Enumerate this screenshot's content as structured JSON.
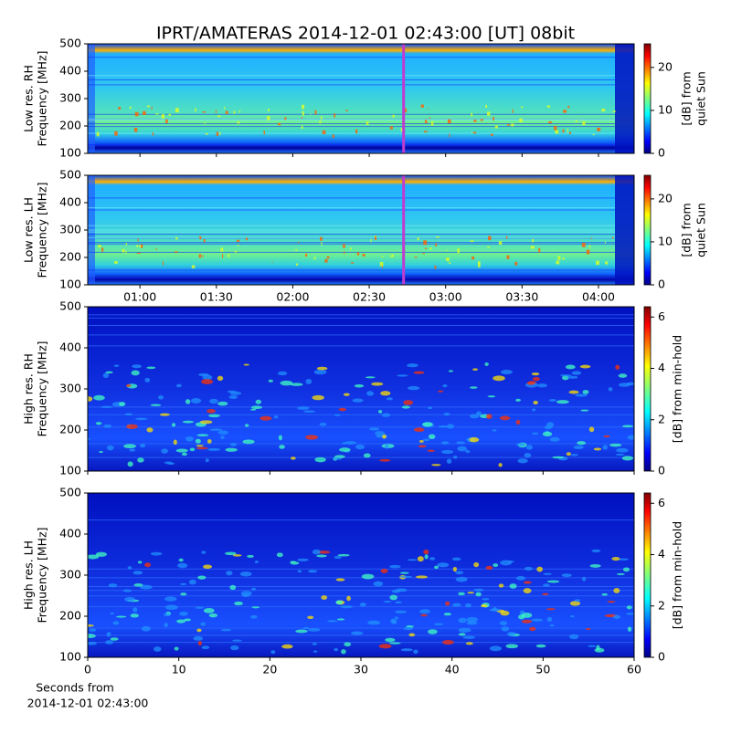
{
  "chart_data": [
    {
      "type": "spectrogram",
      "title": "IPRT/AMATERAS 2014-12-01 02:43:00 [UT]   08bit",
      "ylabel": [
        "Low res. RH",
        "Frequency [MHz]"
      ],
      "ylim": [
        100,
        500
      ],
      "yticks": [
        100,
        200,
        300,
        400,
        500
      ],
      "xlim": [
        39.5,
        254
      ],
      "marker": {
        "value": 163.5,
        "color": "#c03cd0"
      },
      "colorbar": {
        "label": [
          "[dB] from",
          "quiet Sun"
        ],
        "lim": [
          0,
          25.5
        ],
        "ticks": [
          0,
          10,
          20
        ]
      }
    },
    {
      "type": "spectrogram",
      "ylabel": [
        "Low res. LH",
        "Frequency [MHz]"
      ],
      "ylim": [
        100,
        500
      ],
      "yticks": [
        100,
        200,
        300,
        400,
        500
      ],
      "xlim": [
        39.5,
        254
      ],
      "xticks": [
        {
          "value": 60,
          "label": "01:00"
        },
        {
          "value": 90,
          "label": "01:30"
        },
        {
          "value": 120,
          "label": "02:00"
        },
        {
          "value": 150,
          "label": "02:30"
        },
        {
          "value": 180,
          "label": "03:00"
        },
        {
          "value": 210,
          "label": "03:30"
        },
        {
          "value": 240,
          "label": "04:00"
        }
      ],
      "marker": {
        "value": 163.5,
        "color": "#c03cd0"
      },
      "colorbar": {
        "label": [
          "[dB] from",
          "quiet Sun"
        ],
        "lim": [
          0,
          25.5
        ],
        "ticks": [
          0,
          10,
          20
        ]
      }
    },
    {
      "type": "spectrogram",
      "ylabel": [
        "High res. RH",
        "Frequency [MHz]"
      ],
      "ylim": [
        100,
        500
      ],
      "yticks": [
        100,
        200,
        300,
        400,
        500
      ],
      "xlim": [
        0,
        60
      ],
      "colorbar": {
        "label": [
          "[dB] from min-hold"
        ],
        "lim": [
          0,
          6.4
        ],
        "ticks": [
          0,
          2,
          4,
          6
        ]
      }
    },
    {
      "type": "spectrogram",
      "ylabel": [
        "High res. LH",
        "Frequency [MHz]"
      ],
      "ylim": [
        100,
        500
      ],
      "yticks": [
        100,
        200,
        300,
        400,
        500
      ],
      "xlim": [
        0,
        60
      ],
      "xticks": [
        0,
        10,
        20,
        30,
        40,
        50,
        60
      ],
      "xlabel": [
        "Seconds from",
        "2014-12-01 02:43:00"
      ],
      "colorbar": {
        "label": [
          "[dB] from min-hold"
        ],
        "lim": [
          0,
          6.4
        ],
        "ticks": [
          0,
          2,
          4,
          6
        ]
      }
    }
  ]
}
